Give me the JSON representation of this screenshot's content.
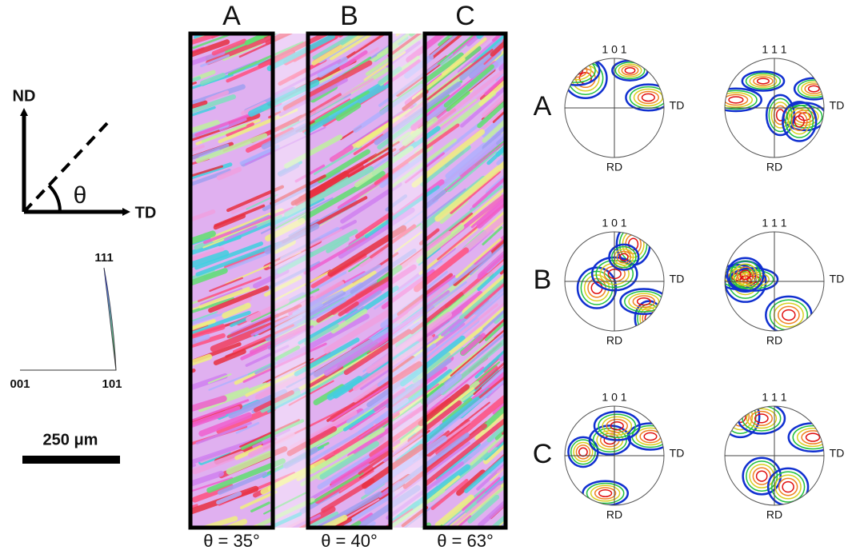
{
  "axes": {
    "nd": "ND",
    "td": "TD",
    "angle": "θ"
  },
  "ipf_triangle": {
    "top": "111",
    "left": "001",
    "right": "101"
  },
  "scale_bar": {
    "label": "250 μm"
  },
  "strips": [
    {
      "label": "A",
      "angle": "θ = 35°"
    },
    {
      "label": "B",
      "angle": "θ = 40°"
    },
    {
      "label": "C",
      "angle": "θ = 63°"
    }
  ],
  "pole_figures": {
    "columns": [
      "1 0 1",
      "1 1 1"
    ],
    "rows": [
      "A",
      "B",
      "C"
    ],
    "td": "TD",
    "rd": "RD"
  }
}
